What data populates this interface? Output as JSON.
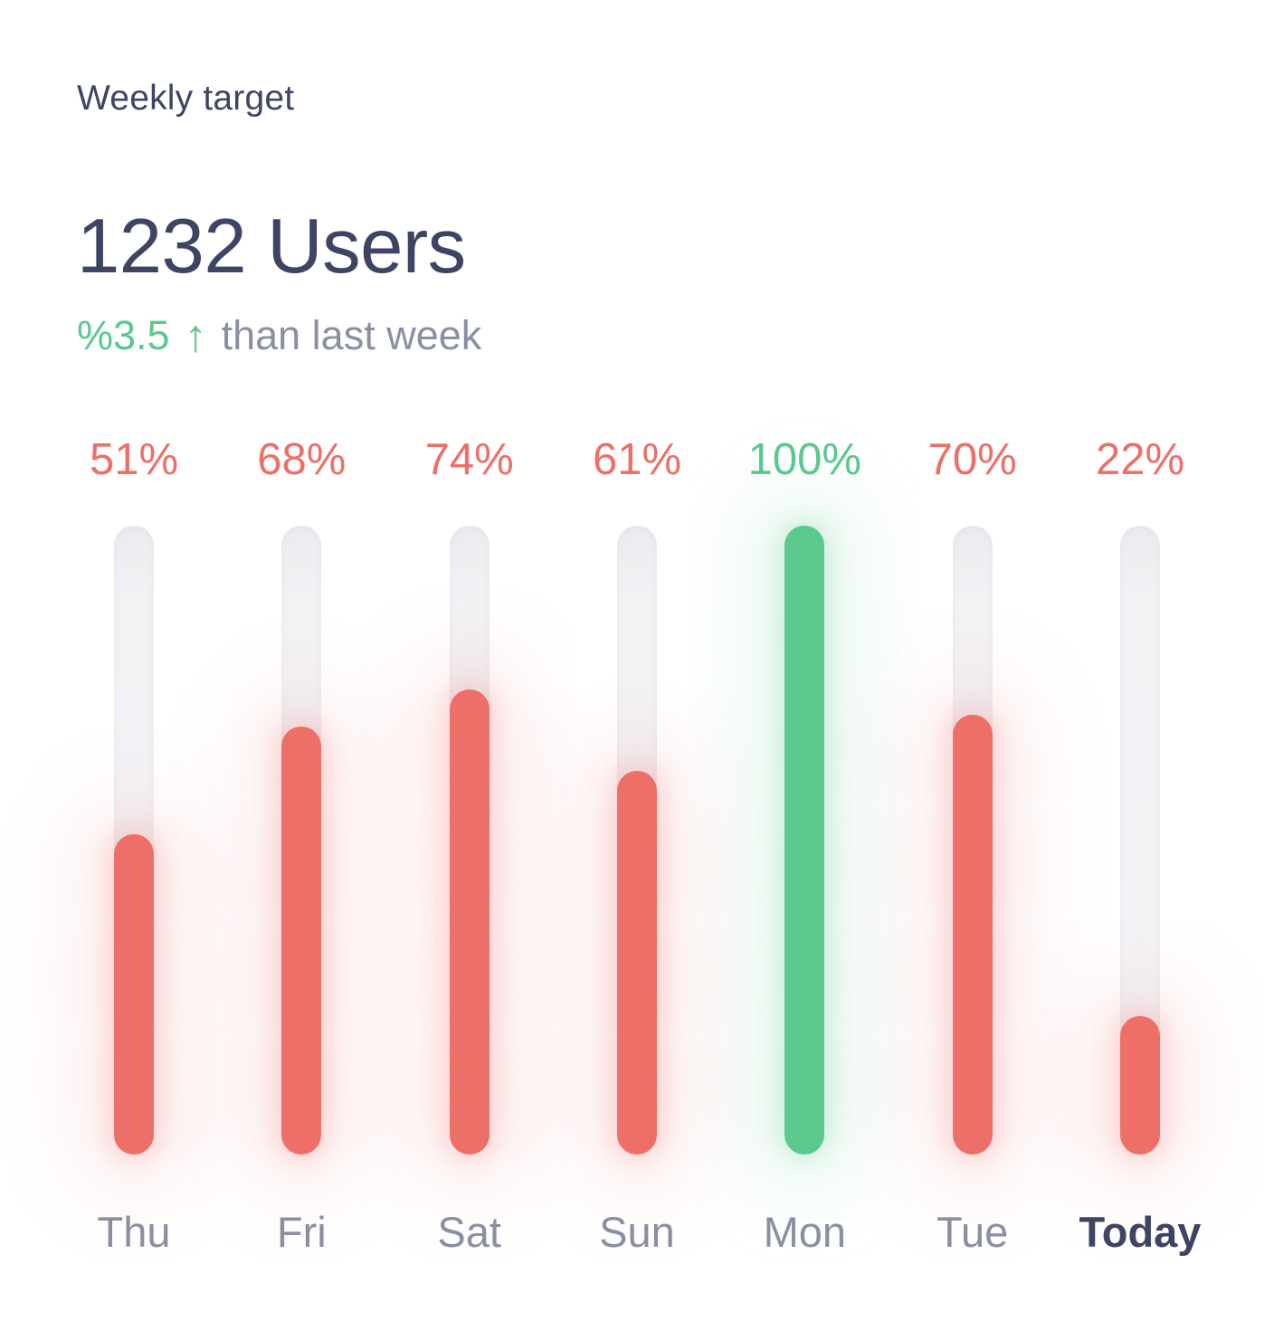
{
  "theme": {
    "bg": "#FFFFFF",
    "ink": "#3E4463",
    "muted": "#8A90A2",
    "red": "#ED6F68",
    "green": "#5BC98E",
    "track": "#F2F2F5"
  },
  "header": {
    "title": "Weekly target",
    "metric_value": "1232 Users",
    "delta_value": "%3.5",
    "delta_arrow": "↑",
    "delta_caption": "than last week"
  },
  "chart_data": {
    "type": "bar",
    "title": "Weekly target",
    "subtitle": "1232 Users, %3.5 up than last week",
    "unit": "%",
    "ylim": [
      0,
      100
    ],
    "grid": false,
    "legend": false,
    "categories": [
      "Thu",
      "Fri",
      "Sat",
      "Sun",
      "Mon",
      "Tue",
      "Today"
    ],
    "values": [
      51,
      68,
      74,
      61,
      100,
      70,
      22
    ],
    "points": [
      {
        "day": "Thu",
        "value": 51,
        "label": "51%",
        "color": "red"
      },
      {
        "day": "Fri",
        "value": 68,
        "label": "68%",
        "color": "red"
      },
      {
        "day": "Sat",
        "value": 74,
        "label": "74%",
        "color": "red"
      },
      {
        "day": "Sun",
        "value": 61,
        "label": "61%",
        "color": "red"
      },
      {
        "day": "Mon",
        "value": 100,
        "label": "100%",
        "color": "green"
      },
      {
        "day": "Tue",
        "value": 70,
        "label": "70%",
        "color": "red"
      },
      {
        "day": "Today",
        "value": 22,
        "label": "22%",
        "color": "red",
        "emphasis": true
      }
    ]
  }
}
